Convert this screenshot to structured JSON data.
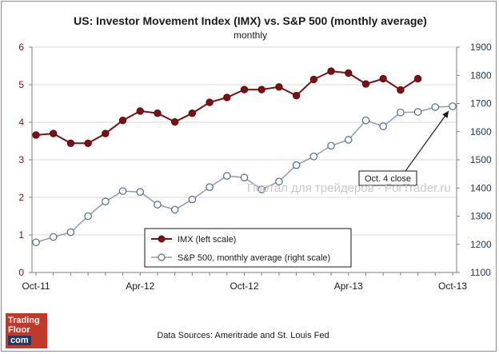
{
  "chart_data": {
    "type": "line",
    "title": "US: Investor Movement Index (IMX) vs. S&P 500 (monthly average)",
    "subtitle": "monthly",
    "x_tick_labels": [
      "Oct-11",
      "Apr-12",
      "Oct-12",
      "Apr-13",
      "Oct-13"
    ],
    "x_months": [
      "Oct-11",
      "Nov-11",
      "Dec-11",
      "Jan-12",
      "Feb-12",
      "Mar-12",
      "Apr-12",
      "May-12",
      "Jun-12",
      "Jul-12",
      "Aug-12",
      "Sep-12",
      "Oct-12",
      "Nov-12",
      "Dec-12",
      "Jan-13",
      "Feb-13",
      "Mar-13",
      "Apr-13",
      "May-13",
      "Jun-13",
      "Jul-13",
      "Aug-13",
      "Sep-13",
      "Oct-13"
    ],
    "y_left": {
      "range": [
        0,
        6
      ],
      "ticks": [
        "0",
        "1",
        "2",
        "3",
        "4",
        "5",
        "6"
      ],
      "color": "#7b1113"
    },
    "y_right": {
      "range": [
        1100,
        1900
      ],
      "ticks": [
        "1100",
        "1200",
        "1300",
        "1400",
        "1500",
        "1600",
        "1700",
        "1800",
        "1900"
      ],
      "color": "#1f3864"
    },
    "series": [
      {
        "name": "IMX (left scale)",
        "axis": "left",
        "color": "#7b1113",
        "marker": "filled-circle",
        "values": [
          3.66,
          3.7,
          3.44,
          3.44,
          3.7,
          4.05,
          4.3,
          4.24,
          4.01,
          4.24,
          4.53,
          4.66,
          4.87,
          4.87,
          4.94,
          4.71,
          5.14,
          5.36,
          5.31,
          5.02,
          5.16,
          4.86,
          5.16,
          null,
          null
        ]
      },
      {
        "name": "S&P 500, monthly average (right scale)",
        "axis": "right",
        "color": "#8a9bb8",
        "marker": "hollow-circle",
        "values": [
          1207,
          1226,
          1243,
          1300,
          1352,
          1389,
          1386,
          1341,
          1323,
          1359,
          1403,
          1443,
          1437,
          1395,
          1423,
          1481,
          1512,
          1550,
          1571,
          1640,
          1619,
          1668,
          1670,
          1687,
          1690
        ]
      }
    ],
    "annotation": {
      "text": "Oct. 4 close",
      "x_index": 24,
      "series": 1
    },
    "legend_position": "bottom-center",
    "grid": "horizontal"
  },
  "footer": {
    "source": "Data Sources: Ameritrade and St. Louis Fed",
    "logo_line1": "Trading",
    "logo_line2": "Floor",
    "logo_line3": "com"
  },
  "watermark": "Портал для трейдеров - ForTrader.ru"
}
